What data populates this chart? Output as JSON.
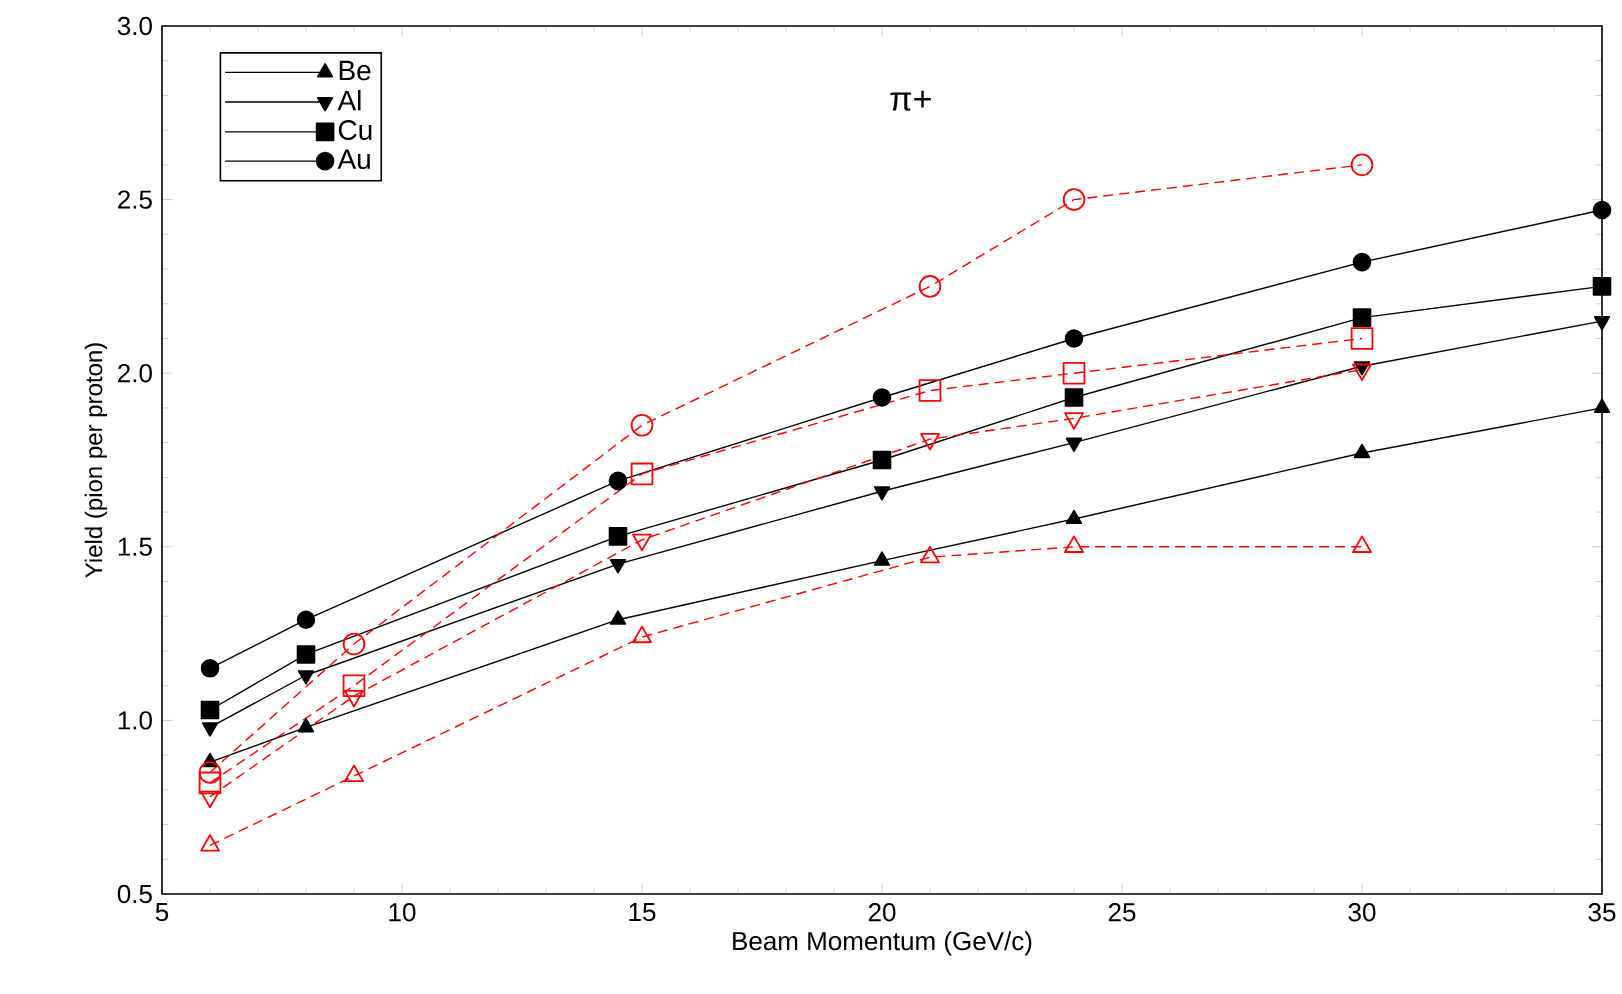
{
  "chart_data": {
    "type": "line",
    "title": "π+",
    "xlabel": "Beam Momentum (GeV/c)",
    "ylabel": "Yield (pion per proton)",
    "xlim": [
      5,
      35
    ],
    "xticks": [
      5,
      10,
      15,
      20,
      25,
      30,
      35
    ],
    "ylim": [
      0.5,
      3.0
    ],
    "yticks": [
      {
        "value": 0.5,
        "label": "0.5"
      },
      {
        "value": 1.0,
        "label": "1.0"
      },
      {
        "value": 1.5,
        "label": "1.5"
      },
      {
        "value": 2.0,
        "label": "2.0"
      },
      {
        "value": 2.5,
        "label": "2.5"
      },
      {
        "value": 3.0,
        "label": "3.0"
      }
    ],
    "grid": false,
    "legend": "top left",
    "series": [
      {
        "name": "Be",
        "color": "#000000",
        "marker": "triangle",
        "line_style": "solid",
        "x": [
          6,
          8,
          14.5,
          20,
          24,
          30,
          35
        ],
        "values": [
          0.88,
          0.98,
          1.29,
          1.46,
          1.58,
          1.77,
          1.9
        ]
      },
      {
        "name": "Al",
        "color": "#000000",
        "marker": "triangle-down",
        "line_style": "solid",
        "x": [
          6,
          8,
          14.5,
          20,
          24,
          30,
          35
        ],
        "values": [
          0.98,
          1.13,
          1.45,
          1.66,
          1.8,
          2.02,
          2.15
        ]
      },
      {
        "name": "Cu",
        "color": "#000000",
        "marker": "square",
        "line_style": "solid",
        "x": [
          6,
          8,
          14.5,
          20,
          24,
          30,
          35
        ],
        "values": [
          1.03,
          1.19,
          1.53,
          1.75,
          1.93,
          2.16,
          2.25
        ]
      },
      {
        "name": "Au",
        "color": "#000000",
        "marker": "circle",
        "line_style": "solid",
        "x": [
          6,
          8,
          14.5,
          20,
          24,
          30,
          35
        ],
        "values": [
          1.15,
          1.29,
          1.69,
          1.93,
          2.1,
          2.32,
          2.47
        ]
      },
      {
        "color": "#ff0000",
        "marker": "triangle",
        "line_style": "dashed",
        "x": [
          6,
          9,
          15,
          21,
          24,
          30
        ],
        "values": [
          0.64,
          0.84,
          1.24,
          1.47,
          1.5,
          1.5
        ]
      },
      {
        "color": "#ff0000",
        "marker": "triangle-down",
        "line_style": "dashed",
        "x": [
          6,
          9,
          15,
          21,
          24,
          30
        ],
        "values": [
          0.78,
          1.07,
          1.52,
          1.81,
          1.87,
          2.01
        ]
      },
      {
        "color": "#ff0000",
        "marker": "square",
        "line_style": "dashed",
        "x": [
          6,
          9,
          15,
          21,
          24,
          30
        ],
        "values": [
          0.82,
          1.1,
          1.71,
          1.95,
          2.0,
          2.1
        ]
      },
      {
        "color": "#ff0000",
        "marker": "circle",
        "line_style": "dashed",
        "x": [
          6,
          9,
          15,
          21,
          24,
          30
        ],
        "values": [
          0.85,
          1.22,
          1.85,
          2.25,
          2.5,
          2.6
        ]
      }
    ]
  }
}
